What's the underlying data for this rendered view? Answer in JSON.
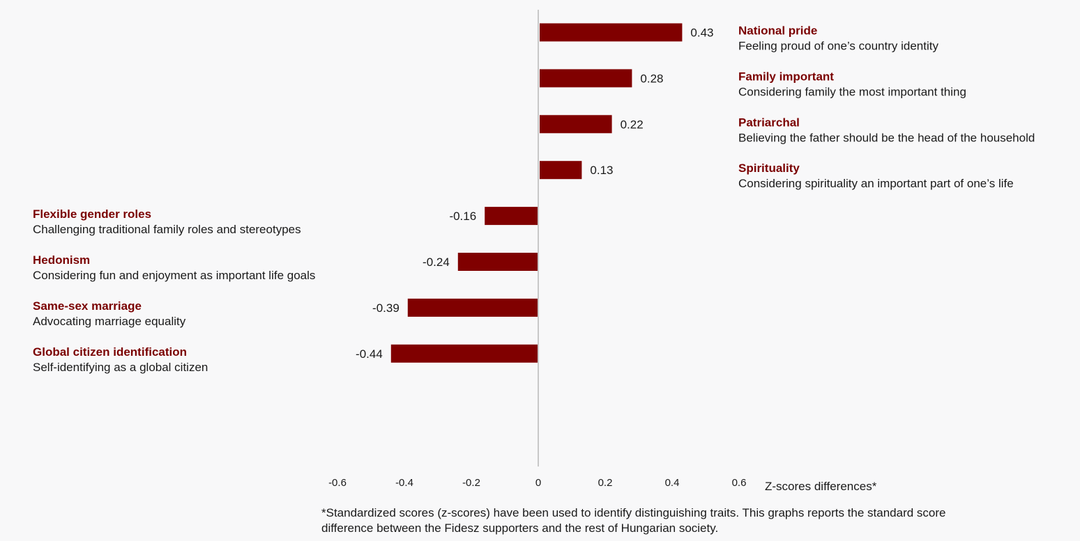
{
  "chart_data": {
    "type": "bar",
    "orientation": "horizontal",
    "bar_color": "#800000",
    "label_color": "#7a0000",
    "categories": [
      "National pride",
      "Family important",
      "Patriarchal",
      "Spirituality",
      "Flexible gender roles",
      "Hedonism",
      "Same-sex marriage",
      "Global citizen identification"
    ],
    "descriptions": [
      "Feeling proud of one’s country identity",
      "Considering family the most important thing",
      "Believing the father should be the head of the household",
      "Considering spirituality an important part of one’s life",
      "Challenging traditional family roles and stereotypes",
      "Considering fun and enjoyment as important life goals",
      "Advocating marriage equality",
      "Self-identifying as a global citizen"
    ],
    "values": [
      0.43,
      0.28,
      0.22,
      0.13,
      -0.16,
      -0.24,
      -0.39,
      -0.44
    ],
    "value_labels": [
      "0.43",
      "0.28",
      "0.22",
      "0.13",
      "-0.16",
      "-0.24",
      "-0.39",
      "-0.44"
    ],
    "xlim": [
      -0.6,
      0.6
    ],
    "xticks": [
      "-0.6",
      "-0.4",
      "-0.2",
      "0",
      "0.2",
      "0.4",
      "0.6"
    ],
    "xtick_values": [
      -0.6,
      -0.4,
      -0.2,
      0,
      0.2,
      0.4,
      0.6
    ],
    "xlabel": "Z-scores differences*",
    "grid": false,
    "legend": "none"
  },
  "footnote": "*Standardized scores (z-scores) have been used to identify distinguishing traits. This graphs reports the standard score difference between the Fidesz supporters and the rest of Hungarian society."
}
